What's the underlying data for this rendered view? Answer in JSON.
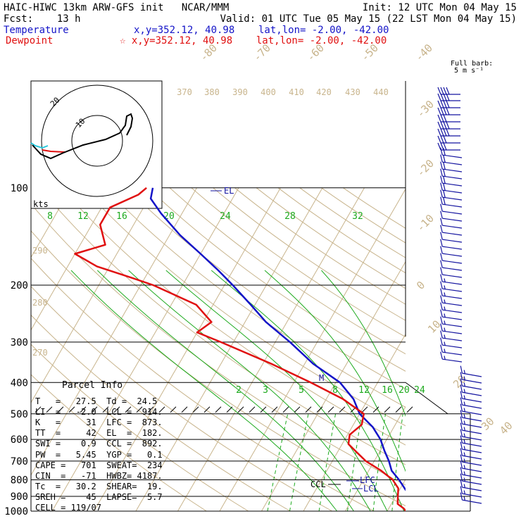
{
  "header": {
    "line1_left": "HAIC-HIWC 13km ARW-GFS init   NCAR/MMM",
    "line1_right": "Init: 12 UTC Mon 04 May 15",
    "line2_left": "Fcst:    13 h",
    "line2_right": "Valid: 01 UTC Tue 05 May 15 (22 LST Mon 04 May 15)",
    "line3_left": "Temperature",
    "line3_mid": "x,y=352.12, 40.98    lat,lon= -2.00, -42.00",
    "line4_left": "Dewpoint",
    "line4_mid": "☆ x,y=352.12, 40.98    lat,lon= -2.00, -42.00"
  },
  "colors": {
    "temperature": "#1414c8",
    "dewpoint": "#e01010",
    "isotherm": "#c8b48c",
    "mixing_ratio": "#1eaa1e",
    "wind_barb": "#1414a0",
    "hodo_cyan": "#28c8dc"
  },
  "barb_note": {
    "line1": "Full barb:",
    "line2": "5 m s⁻¹"
  },
  "hodograph": {
    "unit": "kts",
    "ring_labels": [
      "10",
      "20"
    ]
  },
  "parcel_info": {
    "title": "Parcel Info",
    "rows": [
      "T   =   27.5  Td =  24.5",
      "LI  =   -2.0  LCL =  914.",
      "K   =     31  LFC =  873.",
      "TT  =     42  EL  =  182.",
      "SWI =    0.9  CCL =  892.",
      "PW  =   5.45  YGP =   0.1",
      "CAPE =   701  SWEAT=  234",
      "CIN  =   -71  HWBZ= 4187.",
      "Tc  =   30.2  SHEAR=  19.",
      "SREH =    45  LAPSE=  5.7",
      "CELL = 119/07"
    ]
  },
  "level_labels": {
    "el": "EL",
    "lfc": "LFC",
    "lcl": "LCL",
    "ccl": "CCL",
    "melt": "M"
  },
  "chart_data": {
    "type": "line",
    "title": "",
    "pressure_levels": [
      100,
      200,
      300,
      400,
      500,
      600,
      700,
      800,
      900,
      1000
    ],
    "isotherm_labels": [
      "-80",
      "-70",
      "-60",
      "-50",
      "-40",
      "-30",
      "-20",
      "-10",
      "0",
      "10",
      "20",
      "30",
      "40"
    ],
    "theta_labels_upper": [
      "370",
      "380",
      "390",
      "400",
      "410",
      "420",
      "430",
      "440"
    ],
    "theta_labels_left": [
      "290",
      "280",
      "270"
    ],
    "mixing_ratio_labels_upper": [
      "8",
      "12",
      "16",
      "20",
      "24",
      "28",
      "32"
    ],
    "mixing_ratio_labels_lower": [
      "2",
      "3",
      "5",
      "8",
      "12",
      "16",
      "20",
      "24"
    ],
    "series": [
      {
        "name": "Temperature",
        "pressure": [
          100,
          108,
          120,
          140,
          160,
          180,
          200,
          230,
          260,
          300,
          350,
          400,
          450,
          500,
          550,
          600,
          650,
          700,
          750,
          800,
          850,
          880,
          900,
          930,
          960,
          1000
        ],
        "temperature": [
          -80.5,
          -79.5,
          -75,
          -67.5,
          -60,
          -53.5,
          -48,
          -41,
          -35,
          -26.5,
          -18,
          -9,
          -3.5,
          0,
          5,
          8.5,
          11,
          13.5,
          15.5,
          18.5,
          21,
          22.5,
          23.5,
          24.5,
          25.5,
          27.5
        ]
      },
      {
        "name": "Dewpoint",
        "pressure": [
          100,
          105,
          115,
          130,
          150,
          160,
          175,
          190,
          200,
          230,
          260,
          280,
          300,
          350,
          400,
          450,
          500,
          540,
          580,
          620,
          650,
          700,
          750,
          800,
          850,
          900,
          950,
          980,
          1000
        ],
        "temperature": [
          -82,
          -83,
          -88,
          -88,
          -84,
          -90,
          -83,
          -73,
          -67,
          -54,
          -48,
          -50,
          -43,
          -28,
          -16,
          -6,
          1,
          2,
          0.5,
          1.5,
          4,
          8,
          13,
          17,
          19.5,
          20.5,
          21.5,
          23.5,
          24.5
        ]
      }
    ]
  }
}
